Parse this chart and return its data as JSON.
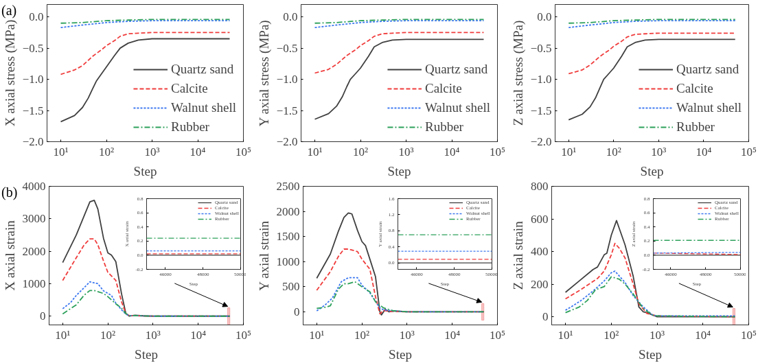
{
  "chart_data": [
    {
      "type": "line",
      "annotations": [
        "(a)"
      ],
      "xlabel": "Step",
      "ylabel": "X axial stress (MPa)",
      "log": "x",
      "legend": "bottom right",
      "xlim": [
        5,
        100000
      ],
      "xticks": [
        {
          "value": 10,
          "label": "10¹"
        },
        {
          "value": 100,
          "label": "10²"
        },
        {
          "value": 1000,
          "label": "10³"
        },
        {
          "value": 10000,
          "label": "10⁴"
        },
        {
          "value": 100000,
          "label": "10⁵"
        }
      ],
      "ylim": [
        -2.0,
        0.2
      ],
      "yticks": [
        {
          "value": -2.0,
          "label": "−2.0"
        },
        {
          "value": -1.5,
          "label": "−1.5"
        },
        {
          "value": -1.0,
          "label": "−1.0"
        },
        {
          "value": -0.5,
          "label": "−0.5"
        },
        {
          "value": 0.0,
          "label": "0.0"
        }
      ],
      "series": [
        {
          "name": "Quartz sand",
          "color": "#404040",
          "line_style": "solid",
          "x": [
            10,
            20,
            30,
            40,
            50,
            60,
            80,
            100,
            150,
            200,
            300,
            500,
            1000,
            5000,
            50000
          ],
          "values": [
            -1.68,
            -1.58,
            -1.45,
            -1.3,
            -1.15,
            -1.03,
            -0.9,
            -0.8,
            -0.62,
            -0.5,
            -0.42,
            -0.37,
            -0.35,
            -0.35,
            -0.35
          ]
        },
        {
          "name": "Calcite",
          "color": "#f03c3c",
          "line_style": "dashed",
          "x": [
            10,
            20,
            30,
            50,
            80,
            100,
            150,
            200,
            300,
            500,
            1000,
            50000
          ],
          "values": [
            -0.92,
            -0.85,
            -0.78,
            -0.63,
            -0.52,
            -0.46,
            -0.38,
            -0.31,
            -0.27,
            -0.26,
            -0.25,
            -0.25
          ]
        },
        {
          "name": "Walnut shell",
          "color": "#3c78f0",
          "line_style": "dotted",
          "x": [
            10,
            30,
            100,
            300,
            1000,
            50000
          ],
          "values": [
            -0.17,
            -0.13,
            -0.09,
            -0.07,
            -0.06,
            -0.06
          ]
        },
        {
          "name": "Rubber",
          "color": "#2ca05a",
          "line_style": "dashdot",
          "x": [
            10,
            30,
            100,
            300,
            1000,
            50000
          ],
          "values": [
            -0.1,
            -0.09,
            -0.06,
            -0.05,
            -0.04,
            -0.04
          ]
        }
      ]
    },
    {
      "type": "line",
      "xlabel": "Step",
      "ylabel": "Y axial stress (MPa)",
      "log": "x",
      "legend": "bottom right",
      "xlim": [
        5,
        100000
      ],
      "xticks": [
        {
          "value": 10,
          "label": "10¹"
        },
        {
          "value": 100,
          "label": "10²"
        },
        {
          "value": 1000,
          "label": "10³"
        },
        {
          "value": 10000,
          "label": "10⁴"
        },
        {
          "value": 100000,
          "label": "10⁵"
        }
      ],
      "ylim": [
        -2.0,
        0.2
      ],
      "yticks": [
        {
          "value": -2.0,
          "label": "−2.0"
        },
        {
          "value": -1.5,
          "label": "−1.5"
        },
        {
          "value": -1.0,
          "label": "−1.0"
        },
        {
          "value": -0.5,
          "label": "−0.5"
        },
        {
          "value": 0.0,
          "label": "0.0"
        }
      ],
      "series": [
        {
          "name": "Quartz sand",
          "color": "#404040",
          "line_style": "solid",
          "x": [
            10,
            20,
            30,
            40,
            50,
            60,
            80,
            100,
            150,
            200,
            300,
            500,
            1000,
            5000,
            50000
          ],
          "values": [
            -1.64,
            -1.55,
            -1.43,
            -1.28,
            -1.12,
            -1.0,
            -0.9,
            -0.82,
            -0.63,
            -0.48,
            -0.41,
            -0.37,
            -0.36,
            -0.36,
            -0.36
          ]
        },
        {
          "name": "Calcite",
          "color": "#f03c3c",
          "line_style": "dashed",
          "x": [
            10,
            20,
            30,
            50,
            80,
            100,
            150,
            200,
            300,
            500,
            1000,
            50000
          ],
          "values": [
            -0.9,
            -0.84,
            -0.76,
            -0.62,
            -0.52,
            -0.46,
            -0.38,
            -0.31,
            -0.27,
            -0.26,
            -0.25,
            -0.25
          ]
        },
        {
          "name": "Walnut shell",
          "color": "#3c78f0",
          "line_style": "dotted",
          "x": [
            10,
            30,
            100,
            300,
            1000,
            50000
          ],
          "values": [
            -0.17,
            -0.13,
            -0.09,
            -0.07,
            -0.06,
            -0.06
          ]
        },
        {
          "name": "Rubber",
          "color": "#2ca05a",
          "line_style": "dashdot",
          "x": [
            10,
            30,
            100,
            300,
            1000,
            50000
          ],
          "values": [
            -0.1,
            -0.09,
            -0.06,
            -0.05,
            -0.04,
            -0.04
          ]
        }
      ]
    },
    {
      "type": "line",
      "xlabel": "Step",
      "ylabel": "Z axial stress (MPa)",
      "log": "x",
      "legend": "bottom right",
      "xlim": [
        5,
        100000
      ],
      "xticks": [
        {
          "value": 10,
          "label": "10¹"
        },
        {
          "value": 100,
          "label": "10²"
        },
        {
          "value": 1000,
          "label": "10³"
        },
        {
          "value": 10000,
          "label": "10⁴"
        },
        {
          "value": 100000,
          "label": "10⁵"
        }
      ],
      "ylim": [
        -2.0,
        0.2
      ],
      "yticks": [
        {
          "value": -2.0,
          "label": "−2.0"
        },
        {
          "value": -1.5,
          "label": "−1.5"
        },
        {
          "value": -1.0,
          "label": "−1.0"
        },
        {
          "value": -0.5,
          "label": "−0.5"
        },
        {
          "value": 0.0,
          "label": "0.0"
        }
      ],
      "series": [
        {
          "name": "Quartz sand",
          "color": "#404040",
          "line_style": "solid",
          "x": [
            10,
            20,
            30,
            40,
            50,
            60,
            80,
            100,
            150,
            200,
            300,
            500,
            1000,
            5000,
            50000
          ],
          "values": [
            -1.65,
            -1.56,
            -1.44,
            -1.29,
            -1.13,
            -1.0,
            -0.9,
            -0.82,
            -0.63,
            -0.48,
            -0.41,
            -0.37,
            -0.36,
            -0.36,
            -0.36
          ]
        },
        {
          "name": "Calcite",
          "color": "#f03c3c",
          "line_style": "dashed",
          "x": [
            10,
            20,
            30,
            50,
            80,
            100,
            150,
            200,
            300,
            500,
            1000,
            50000
          ],
          "values": [
            -0.91,
            -0.85,
            -0.77,
            -0.63,
            -0.53,
            -0.47,
            -0.39,
            -0.32,
            -0.28,
            -0.27,
            -0.26,
            -0.26
          ]
        },
        {
          "name": "Walnut shell",
          "color": "#3c78f0",
          "line_style": "dotted",
          "x": [
            10,
            30,
            100,
            300,
            1000,
            50000
          ],
          "values": [
            -0.17,
            -0.13,
            -0.09,
            -0.07,
            -0.06,
            -0.06
          ]
        },
        {
          "name": "Rubber",
          "color": "#2ca05a",
          "line_style": "dashdot",
          "x": [
            10,
            30,
            100,
            300,
            1000,
            50000
          ],
          "values": [
            -0.1,
            -0.09,
            -0.06,
            -0.05,
            -0.04,
            -0.04
          ]
        }
      ]
    },
    {
      "type": "line",
      "annotations": [
        "(b)"
      ],
      "xlabel": "Step",
      "ylabel": "X axial strain",
      "log": "x",
      "xlim": [
        5,
        100000
      ],
      "xticks": [
        {
          "value": 10,
          "label": "10¹"
        },
        {
          "value": 100,
          "label": "10²"
        },
        {
          "value": 1000,
          "label": "10³"
        },
        {
          "value": 10000,
          "label": "10⁴"
        },
        {
          "value": 100000,
          "label": "10⁵"
        }
      ],
      "ylim": [
        -270,
        4000
      ],
      "yticks": [
        0,
        1000,
        2000,
        3000,
        4000
      ],
      "bands": [
        {
          "axis": "x",
          "from": 45000,
          "to": 50000,
          "color": "#f4a0a0"
        }
      ],
      "series": [
        {
          "color": "#404040",
          "line_style": "solid",
          "x": [
            10,
            20,
            30,
            40,
            50,
            60,
            80,
            100,
            120,
            150,
            200,
            250,
            300,
            400,
            600,
            1000,
            5000,
            50000
          ],
          "values": [
            1650,
            2500,
            3100,
            3520,
            3570,
            3300,
            2400,
            1950,
            1880,
            1680,
            700,
            80,
            0,
            30,
            10,
            0,
            0,
            0
          ]
        },
        {
          "color": "#f03c3c",
          "line_style": "dashed",
          "x": [
            10,
            20,
            30,
            40,
            50,
            60,
            80,
            100,
            150,
            200,
            250,
            300,
            500,
            1000,
            50000
          ],
          "values": [
            1100,
            1800,
            2200,
            2380,
            2380,
            2200,
            1700,
            1350,
            1100,
            450,
            80,
            20,
            10,
            0,
            0
          ]
        },
        {
          "color": "#3c78f0",
          "line_style": "dotted",
          "x": [
            10,
            15,
            20,
            30,
            40,
            60,
            80,
            120,
            150,
            200,
            250,
            300,
            1000,
            50000
          ],
          "values": [
            230,
            420,
            640,
            880,
            1060,
            1000,
            780,
            640,
            400,
            200,
            60,
            20,
            0,
            0
          ]
        },
        {
          "color": "#2ca05a",
          "line_style": "dashdot",
          "x": [
            10,
            20,
            30,
            40,
            50,
            80,
            100,
            150,
            200,
            250,
            300,
            1000,
            50000
          ],
          "values": [
            70,
            350,
            650,
            790,
            790,
            700,
            600,
            380,
            250,
            80,
            20,
            0,
            0
          ]
        }
      ]
    },
    {
      "type": "line",
      "xlabel": "Step",
      "ylabel": "X axial strain",
      "legend": "top right",
      "xlim": [
        45000,
        50000
      ],
      "xticks": [
        46000,
        48000,
        50000
      ],
      "ylim": [
        -0.2,
        0.8
      ],
      "yticks": [
        {
          "value": -0.2,
          "label": "-0.2"
        },
        {
          "value": 0.0,
          "label": "0.0"
        },
        {
          "value": 0.2,
          "label": "0.2"
        },
        {
          "value": 0.4,
          "label": "0.4"
        },
        {
          "value": 0.6,
          "label": "0.6"
        },
        {
          "value": 0.8,
          "label": "0.8"
        }
      ],
      "series": [
        {
          "name": "Quartz sand",
          "color": "#404040",
          "line_style": "solid",
          "x": [
            45000,
            50000
          ],
          "values": [
            0.0,
            0.0
          ]
        },
        {
          "name": "Calcite",
          "color": "#f03c3c",
          "line_style": "dashed",
          "x": [
            45000,
            50000
          ],
          "values": [
            0.02,
            0.02
          ]
        },
        {
          "name": "Walnut shell",
          "color": "#3c78f0",
          "line_style": "dotted",
          "x": [
            45000,
            50000
          ],
          "values": [
            0.06,
            0.06
          ]
        },
        {
          "name": "Rubber",
          "color": "#2ca05a",
          "line_style": "dashdot",
          "x": [
            45000,
            50000
          ],
          "values": [
            0.24,
            0.24
          ]
        }
      ]
    },
    {
      "type": "line",
      "xlabel": "Step",
      "ylabel": "Y axial strain",
      "log": "x",
      "xlim": [
        5,
        100000
      ],
      "xticks": [
        {
          "value": 10,
          "label": "10¹"
        },
        {
          "value": 100,
          "label": "10²"
        },
        {
          "value": 1000,
          "label": "10³"
        },
        {
          "value": 10000,
          "label": "10⁴"
        },
        {
          "value": 100000,
          "label": "10⁵"
        }
      ],
      "ylim": [
        -260,
        2500
      ],
      "yticks": [
        0,
        500,
        1000,
        1500,
        2000,
        2500
      ],
      "bands": [
        {
          "axis": "x",
          "from": 45000,
          "to": 50000,
          "color": "#f4a0a0"
        }
      ],
      "series": [
        {
          "color": "#404040",
          "line_style": "solid",
          "x": [
            10,
            20,
            30,
            40,
            50,
            60,
            80,
            100,
            120,
            150,
            200,
            250,
            270,
            330,
            400,
            500,
            1000,
            50000
          ],
          "values": [
            670,
            1150,
            1600,
            1880,
            1970,
            1950,
            1620,
            1400,
            1320,
            1050,
            700,
            0,
            -60,
            50,
            0,
            20,
            0,
            0
          ]
        },
        {
          "color": "#f03c3c",
          "line_style": "dashed",
          "x": [
            10,
            20,
            30,
            40,
            50,
            80,
            100,
            150,
            200,
            250,
            300,
            400,
            1000,
            50000
          ],
          "values": [
            430,
            800,
            1100,
            1250,
            1250,
            1200,
            1050,
            850,
            300,
            -40,
            30,
            10,
            0,
            0
          ]
        },
        {
          "color": "#3c78f0",
          "line_style": "dotted",
          "x": [
            10,
            15,
            22,
            28,
            35,
            50,
            80,
            100,
            150,
            200,
            250,
            300,
            500,
            1000,
            50000
          ],
          "values": [
            20,
            130,
            270,
            440,
            600,
            680,
            680,
            530,
            380,
            210,
            80,
            40,
            20,
            0,
            0
          ]
        },
        {
          "color": "#2ca05a",
          "line_style": "dashdot",
          "x": [
            10,
            15,
            20,
            30,
            40,
            50,
            70,
            100,
            150,
            200,
            300,
            500,
            1000,
            50000
          ],
          "values": [
            70,
            90,
            120,
            450,
            560,
            560,
            600,
            500,
            400,
            200,
            80,
            20,
            0,
            0
          ]
        }
      ]
    },
    {
      "type": "line",
      "xlabel": "Step",
      "ylabel": "Y axial strain",
      "legend": "top right",
      "xlim": [
        45000,
        50000
      ],
      "xticks": [
        46000,
        48000,
        50000
      ],
      "ylim": [
        -0.16,
        1.6
      ],
      "yticks": [
        {
          "value": 0.0,
          "label": "0.0"
        },
        {
          "value": 0.4,
          "label": "0.4"
        },
        {
          "value": 0.8,
          "label": "0.8"
        },
        {
          "value": 1.2,
          "label": "1.2"
        },
        {
          "value": 1.6,
          "label": "1.6"
        }
      ],
      "series": [
        {
          "name": "Quartz sand",
          "color": "#404040",
          "line_style": "solid",
          "x": [
            45000,
            50000
          ],
          "values": [
            0.0,
            0.0
          ]
        },
        {
          "name": "Calcite",
          "color": "#f03c3c",
          "line_style": "dashed",
          "x": [
            45000,
            50000
          ],
          "values": [
            0.09,
            0.09
          ]
        },
        {
          "name": "Walnut shell",
          "color": "#3c78f0",
          "line_style": "dotted",
          "x": [
            45000,
            50000
          ],
          "values": [
            0.29,
            0.29
          ]
        },
        {
          "name": "Rubber",
          "color": "#2ca05a",
          "line_style": "dashdot",
          "x": [
            45000,
            50000
          ],
          "values": [
            0.7,
            0.7
          ]
        }
      ]
    },
    {
      "type": "line",
      "xlabel": "Step",
      "ylabel": "Z axial strain",
      "log": "x",
      "xlim": [
        5,
        100000
      ],
      "xticks": [
        {
          "value": 10,
          "label": "10¹"
        },
        {
          "value": 100,
          "label": "10²"
        },
        {
          "value": 1000,
          "label": "10³"
        },
        {
          "value": 10000,
          "label": "10⁴"
        },
        {
          "value": 100000,
          "label": "10⁵"
        }
      ],
      "ylim": [
        -50,
        800
      ],
      "yticks": [
        0,
        200,
        400,
        600,
        800
      ],
      "bands": [
        {
          "axis": "x",
          "from": 45000,
          "to": 50000,
          "color": "#f4a0a0"
        }
      ],
      "series": [
        {
          "color": "#404040",
          "line_style": "solid",
          "x": [
            10,
            20,
            40,
            50,
            70,
            80,
            100,
            130,
            150,
            200,
            300,
            400,
            500,
            600,
            1000,
            50000
          ],
          "values": [
            150,
            220,
            290,
            305,
            380,
            390,
            500,
            590,
            540,
            440,
            250,
            60,
            30,
            25,
            0,
            0
          ]
        },
        {
          "color": "#f03c3c",
          "line_style": "dashed",
          "x": [
            10,
            20,
            50,
            70,
            100,
            120,
            150,
            200,
            300,
            400,
            600,
            1000,
            50000
          ],
          "values": [
            110,
            160,
            235,
            280,
            380,
            450,
            420,
            360,
            200,
            80,
            20,
            5,
            0
          ]
        },
        {
          "color": "#3c78f0",
          "line_style": "dotted",
          "x": [
            10,
            15,
            22,
            30,
            45,
            70,
            100,
            120,
            200,
            300,
            500,
            800,
            1000,
            50000
          ],
          "values": [
            40,
            70,
            100,
            130,
            170,
            220,
            270,
            280,
            210,
            130,
            60,
            10,
            5,
            5
          ]
        },
        {
          "color": "#2ca05a",
          "line_style": "dashdot",
          "x": [
            10,
            20,
            30,
            45,
            70,
            100,
            150,
            200,
            300,
            500,
            800,
            1000,
            50000
          ],
          "values": [
            25,
            60,
            100,
            165,
            185,
            245,
            230,
            200,
            140,
            50,
            10,
            5,
            0
          ]
        }
      ]
    },
    {
      "type": "line",
      "xlabel": "Step",
      "ylabel": "Z axial strain",
      "legend": "top right",
      "xlim": [
        45000,
        50000
      ],
      "xticks": [
        46000,
        48000,
        50000
      ],
      "ylim": [
        -0.2,
        0.8
      ],
      "yticks": [
        {
          "value": -0.2,
          "label": "-0.2"
        },
        {
          "value": 0.0,
          "label": "0.0"
        },
        {
          "value": 0.2,
          "label": "0.2"
        },
        {
          "value": 0.4,
          "label": "0.4"
        },
        {
          "value": 0.6,
          "label": "0.6"
        },
        {
          "value": 0.8,
          "label": "0.8"
        }
      ],
      "series": [
        {
          "name": "Quartz sand",
          "color": "#404040",
          "line_style": "solid",
          "x": [
            45000,
            50000
          ],
          "values": [
            0.0,
            0.0
          ]
        },
        {
          "name": "Calcite",
          "color": "#f03c3c",
          "line_style": "dashed",
          "x": [
            45000,
            50000
          ],
          "values": [
            0.03,
            0.01
          ]
        },
        {
          "name": "Walnut shell",
          "color": "#3c78f0",
          "line_style": "dotted",
          "x": [
            45000,
            50000
          ],
          "values": [
            0.03,
            0.04
          ]
        },
        {
          "name": "Rubber",
          "color": "#2ca05a",
          "line_style": "dashdot",
          "x": [
            45000,
            50000
          ],
          "values": [
            0.21,
            0.21
          ]
        }
      ]
    }
  ]
}
